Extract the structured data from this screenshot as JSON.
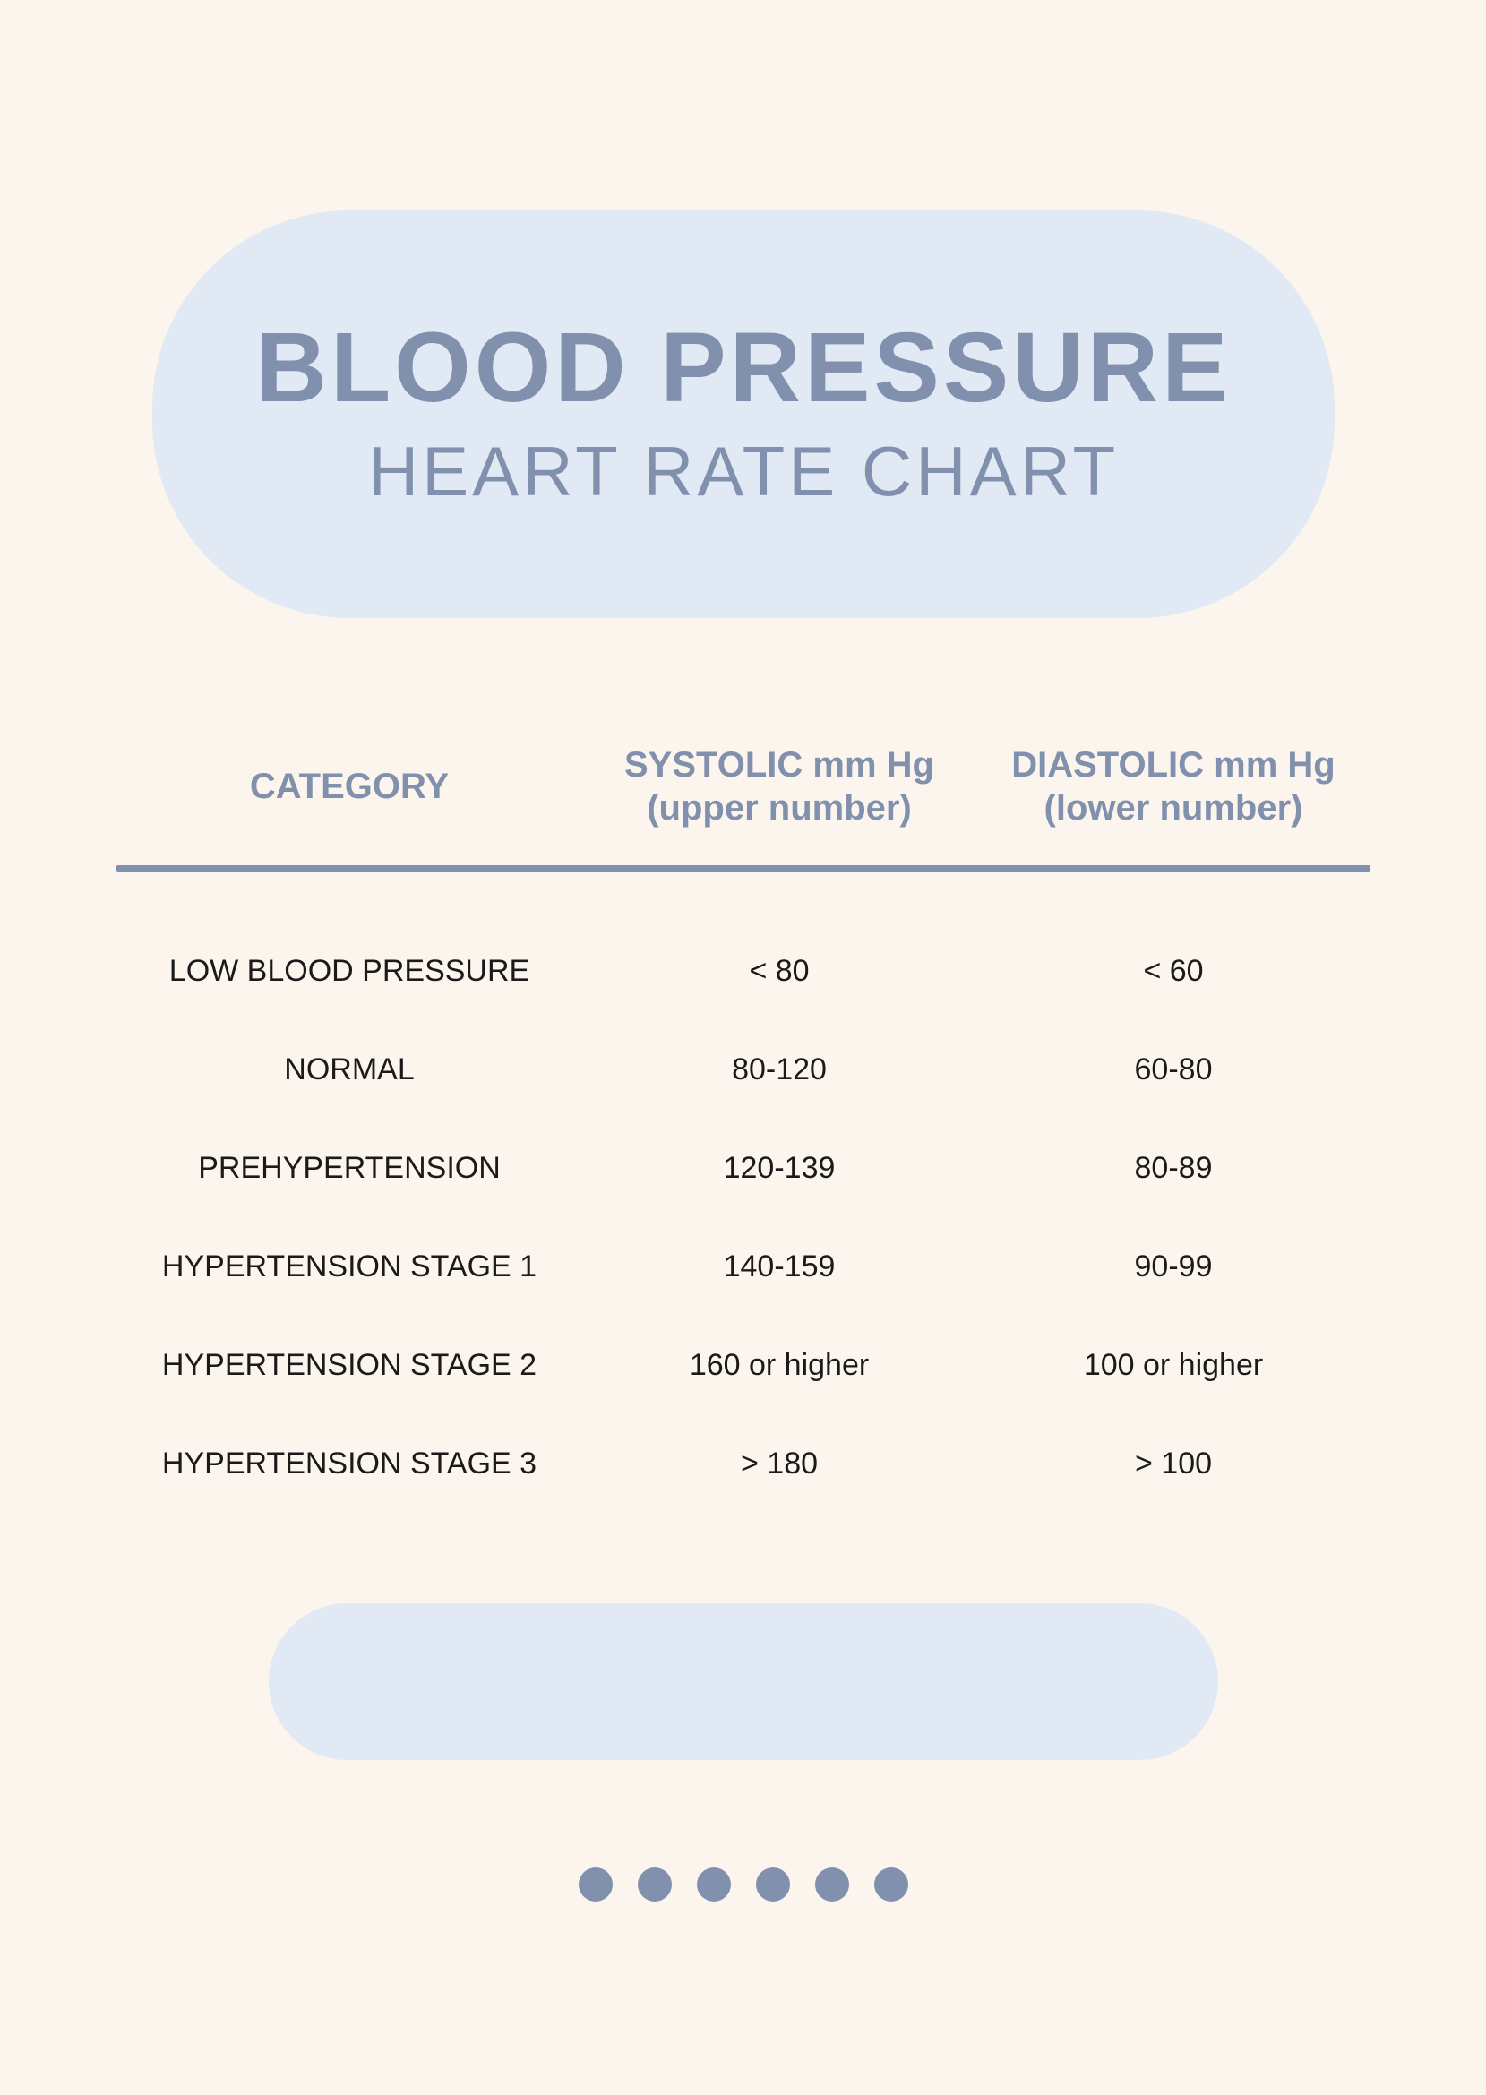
{
  "colors": {
    "page_bg": "#fcf5ee",
    "pill_bg": "#e1e9f5",
    "accent": "#8190ad",
    "text_body": "#1a1a1a"
  },
  "header": {
    "title_main": "BLOOD PRESSURE",
    "title_sub": "HEART RATE CHART"
  },
  "table": {
    "type": "table",
    "columns": [
      {
        "label": "CATEGORY",
        "sub": ""
      },
      {
        "label": "SYSTOLIC mm Hg",
        "sub": "(upper number)"
      },
      {
        "label": "DIASTOLIC mm Hg",
        "sub": "(lower number)"
      }
    ],
    "header_fontsize": 40,
    "header_color": "#8190ad",
    "divider_color": "#8190ad",
    "divider_thickness": 8,
    "body_fontsize": 34,
    "body_color": "#1a1a1a",
    "rows": [
      {
        "category": "LOW BLOOD PRESSURE",
        "systolic": "< 80",
        "diastolic": "< 60"
      },
      {
        "category": "NORMAL",
        "systolic": "80-120",
        "diastolic": "60-80"
      },
      {
        "category": "PREHYPERTENSION",
        "systolic": "120-139",
        "diastolic": "80-89"
      },
      {
        "category": "HYPERTENSION STAGE 1",
        "systolic": "140-159",
        "diastolic": "90-99"
      },
      {
        "category": "HYPERTENSION STAGE 2",
        "systolic": "160 or higher",
        "diastolic": "100 or higher"
      },
      {
        "category": "HYPERTENSION STAGE 3",
        "systolic": "> 180",
        "diastolic": "> 100"
      }
    ]
  },
  "decor": {
    "dots_count": 6,
    "dot_color": "#8190ad",
    "dot_diameter": 38,
    "dot_gap": 28
  }
}
